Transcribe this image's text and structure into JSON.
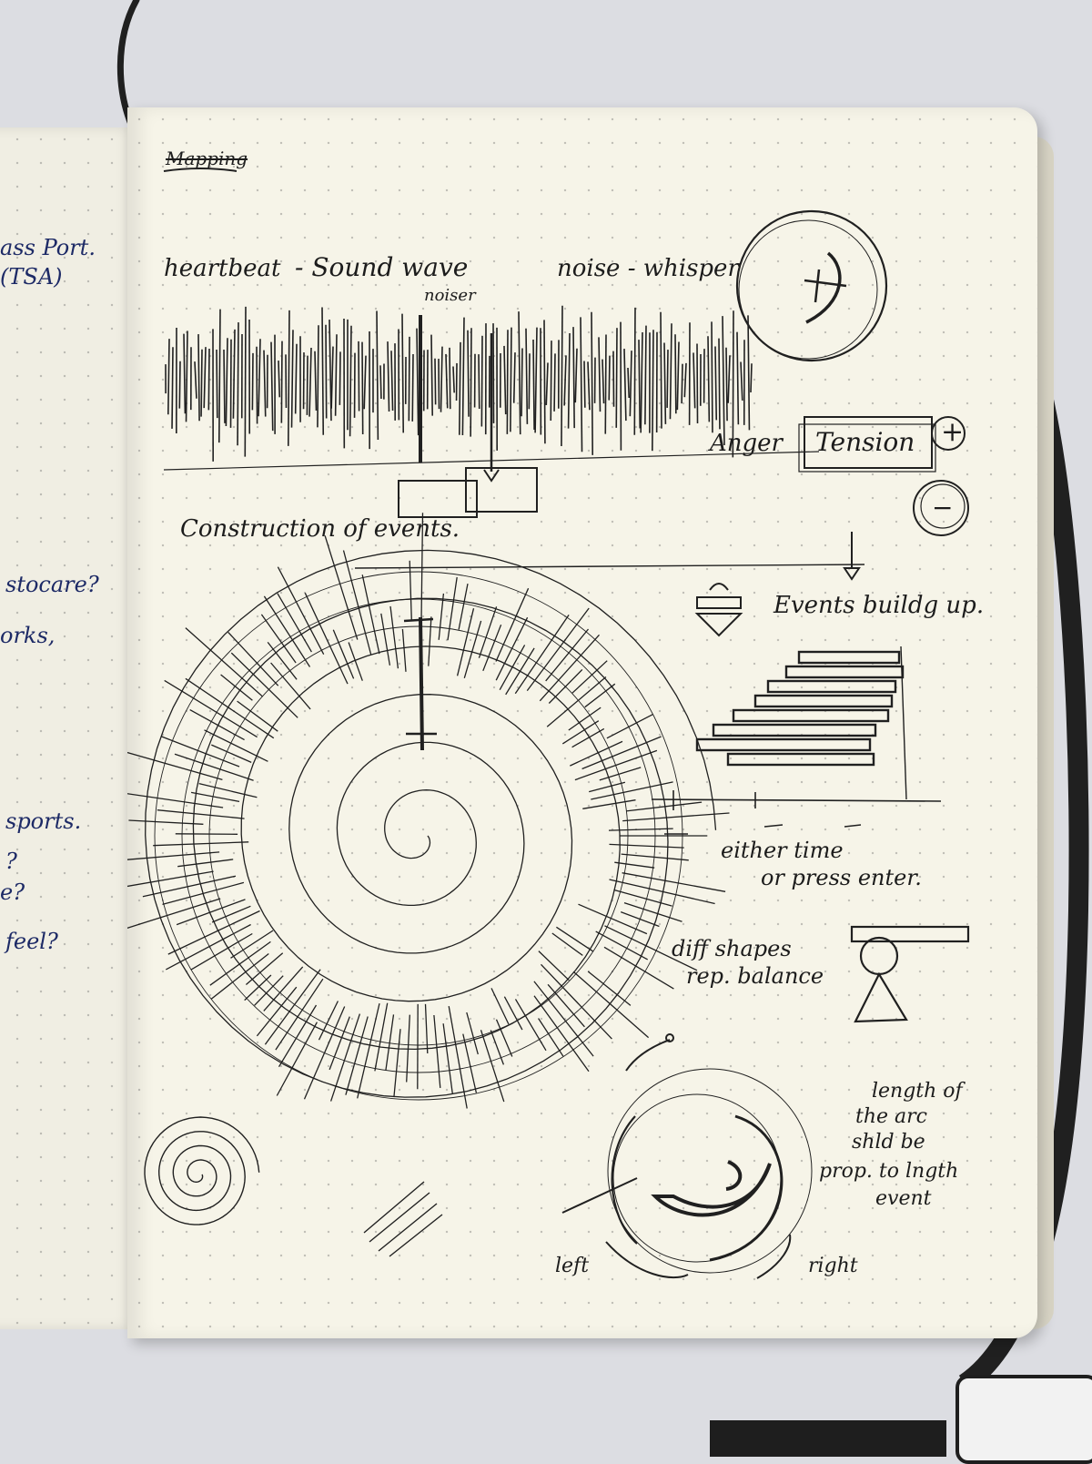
{
  "left_page": {
    "lines": [
      "ass Port.",
      "(TSA)",
      "stocare?",
      "orks,",
      "sports.",
      "?",
      "e?",
      "feel?"
    ]
  },
  "right_page": {
    "heading_struck": "Mapping",
    "heartbeat_line": {
      "heartbeat": "heartbeat",
      "sound_wave": "- Sound wave",
      "noise_whisper": "noise - whisper"
    },
    "noiser": "noiser",
    "anger": "Anger",
    "tension": "Tension",
    "plus": "+",
    "minus": "−",
    "construction": "Construction of events.",
    "events_build_up": "Events buildg up.",
    "either_time": "either  time",
    "or_press_enter": "or press enter.",
    "diff_shapes": "diff shapes",
    "rep_balance": "rep. balance",
    "arc_note": [
      "length of",
      "the arc",
      "shld be",
      "prop. to lngth",
      "event"
    ],
    "left_label": "left",
    "right_label": "right"
  }
}
